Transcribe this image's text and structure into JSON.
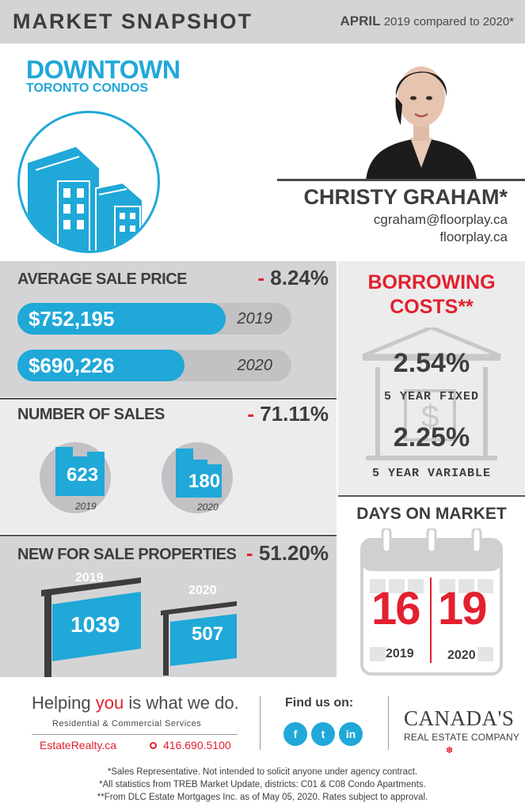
{
  "header": {
    "title": "MARKET SNAPSHOT",
    "month": "APRIL",
    "comparison": "2019 compared to 2020*"
  },
  "location": {
    "title": "DOWNTOWN",
    "subtitle": "TORONTO CONDOS"
  },
  "agent": {
    "name": "CHRISTY GRAHAM*",
    "email": "cgraham@floorplay.ca",
    "website": "floorplay.ca"
  },
  "average_sale_price": {
    "title": "AVERAGE SALE PRICE",
    "change_sign": "-",
    "change_value": "8.24%",
    "bars": [
      {
        "value": "$752,195",
        "year": "2019",
        "fill_fraction": 0.76
      },
      {
        "value": "$690,226",
        "year": "2020",
        "fill_fraction": 0.61
      }
    ]
  },
  "number_of_sales": {
    "title": "NUMBER OF SALES",
    "change_sign": "-",
    "change_value": "71.11%",
    "items": [
      {
        "value": "623",
        "year": "2019"
      },
      {
        "value": "180",
        "year": "2020"
      }
    ]
  },
  "new_for_sale": {
    "title": "NEW FOR SALE PROPERTIES",
    "change_sign": "-",
    "change_value": "51.20%",
    "items": [
      {
        "value": "1039",
        "year": "2019"
      },
      {
        "value": "507",
        "year": "2020"
      }
    ]
  },
  "borrowing": {
    "title_line1": "BORROWING",
    "title_line2": "COSTS**",
    "fixed_rate": "2.54%",
    "fixed_label": "5 YEAR FIXED",
    "variable_rate": "2.25%",
    "variable_label": "5 YEAR VARIABLE"
  },
  "days_on_market": {
    "title": "DAYS ON MARKET",
    "items": [
      {
        "value": "16",
        "year": "2019"
      },
      {
        "value": "19",
        "year": "2020"
      }
    ]
  },
  "footer": {
    "tagline_pre": "Helping ",
    "tagline_you": "you",
    "tagline_post": " is what we do.",
    "services": "Residential & Commercial Services",
    "site": "EstateRealty.ca",
    "phone": "416.690.5100",
    "find_us": "Find us on:",
    "social": [
      "f",
      "t",
      "in"
    ],
    "brand_line1": "CANADA'S",
    "brand_line2": "REAL ESTATE COMPANY",
    "disclaimers": [
      "*Sales Representative. Not intended to solicit anyone under agency contract.",
      "*All statistics from TREB Market Update, districts: C01 & C08 Condo Apartments.",
      "**From DLC Estate Mortgages Inc. as of May 05, 2020. Rates subject to approval."
    ]
  },
  "colors": {
    "accent_blue": "#1fa8d8",
    "accent_red": "#e2202f",
    "panel_gray": "#d4d4d6",
    "panel_light": "#ececec",
    "text_dark": "#3d3d3d"
  }
}
